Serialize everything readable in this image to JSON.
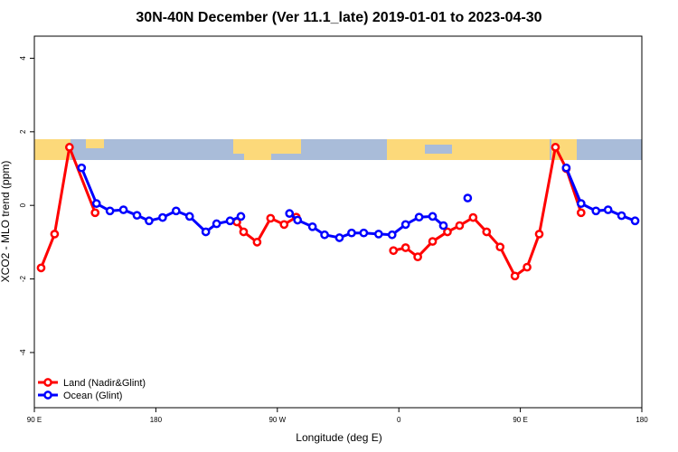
{
  "chart_data": {
    "type": "line",
    "title": "30N-40N December (Ver 11.1_late)   2019-01-01 to 2023-04-30",
    "x_label": "Longitude (deg E)",
    "y_label": "XCO2 - MLO trend (ppm)",
    "xlim": [
      90,
      540
    ],
    "ylim": [
      -5.5,
      4.6
    ],
    "xticks": [
      {
        "value": 90,
        "label": "90 E"
      },
      180,
      {
        "value": 270,
        "label": "90 W"
      },
      {
        "value": 360,
        "label": "0"
      },
      {
        "value": 450,
        "label": "90 E"
      },
      {
        "value": 540,
        "label": "180"
      }
    ],
    "yticks": [
      -4,
      -2,
      0,
      2,
      4
    ],
    "legend": "bottom-left",
    "series": [
      {
        "name": "Land (Nadir&Glint)",
        "color": "#ff0000",
        "x": [
          95,
          105,
          116,
          135,
          null,
          240,
          245,
          255,
          265,
          275,
          284,
          null,
          356,
          365,
          374,
          385,
          396,
          405,
          415,
          425,
          435,
          446,
          455,
          464,
          476,
          484,
          495
        ],
        "values": [
          -1.7,
          -0.78,
          1.58,
          -0.2,
          null,
          -0.45,
          -0.72,
          -1.0,
          -0.35,
          -0.52,
          -0.32,
          null,
          -1.23,
          -1.15,
          -1.4,
          -0.98,
          -0.72,
          -0.55,
          -0.33,
          -0.72,
          -1.13,
          -1.92,
          -1.68,
          -0.78,
          1.58,
          1.0,
          -0.2
        ]
      },
      {
        "name": "Ocean (Glint)",
        "color": "#0000ff",
        "x": [
          125,
          136,
          146,
          156,
          166,
          175,
          185,
          195,
          205,
          217,
          225,
          235,
          243,
          null,
          279,
          285,
          296,
          305,
          316,
          325,
          334,
          345,
          355,
          365,
          375,
          385,
          393,
          null,
          411,
          null,
          484,
          495,
          506,
          515,
          525,
          535
        ],
        "values": [
          1.02,
          0.05,
          -0.15,
          -0.12,
          -0.27,
          -0.42,
          -0.33,
          -0.15,
          -0.3,
          -0.72,
          -0.5,
          -0.42,
          -0.3,
          null,
          -0.22,
          -0.4,
          -0.58,
          -0.8,
          -0.88,
          -0.75,
          -0.75,
          -0.78,
          -0.8,
          -0.52,
          -0.32,
          -0.3,
          -0.55,
          null,
          0.2,
          null,
          1.02,
          0.05,
          -0.15,
          -0.12,
          -0.28,
          -0.42
        ]
      }
    ]
  }
}
